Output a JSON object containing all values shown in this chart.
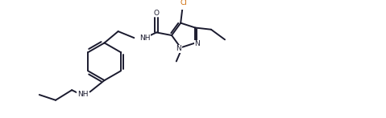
{
  "bg_color": "#ffffff",
  "line_color": "#1a1a2e",
  "cl_color": "#cc6600",
  "line_width": 1.4,
  "figsize": [
    4.79,
    1.47
  ],
  "dpi": 100,
  "xlim": [
    0,
    9.5
  ],
  "ylim": [
    0,
    3.0
  ],
  "font_size": 6.5
}
